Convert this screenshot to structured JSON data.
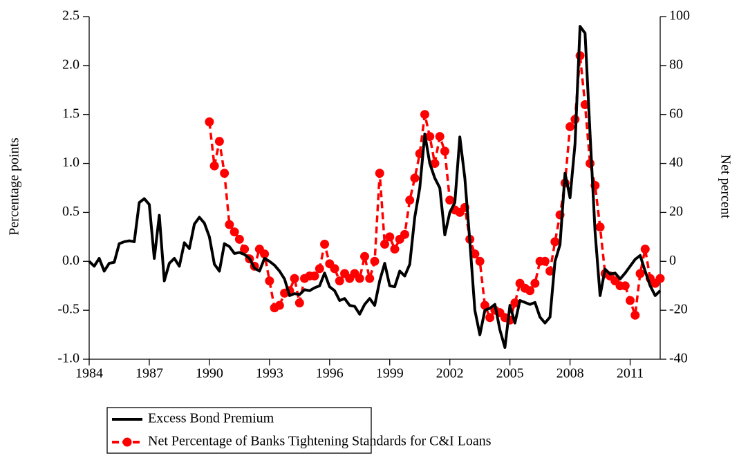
{
  "chart_data": {
    "type": "line",
    "y_label": "Percentage points",
    "y2_label": "Net percent",
    "x": [
      1984,
      1984.25,
      1984.5,
      1984.75,
      1985,
      1985.25,
      1985.5,
      1985.75,
      1986,
      1986.25,
      1986.5,
      1986.75,
      1987,
      1987.25,
      1987.5,
      1987.75,
      1988,
      1988.25,
      1988.5,
      1988.75,
      1989,
      1989.25,
      1989.5,
      1989.75,
      1990,
      1990.25,
      1990.5,
      1990.75,
      1991,
      1991.25,
      1991.5,
      1991.75,
      1992,
      1992.25,
      1992.5,
      1992.75,
      1993,
      1993.25,
      1993.5,
      1993.75,
      1994,
      1994.25,
      1994.5,
      1994.75,
      1995,
      1995.25,
      1995.5,
      1995.75,
      1996,
      1996.25,
      1996.5,
      1996.75,
      1997,
      1997.25,
      1997.5,
      1997.75,
      1998,
      1998.25,
      1998.5,
      1998.75,
      1999,
      1999.25,
      1999.5,
      1999.75,
      2000,
      2000.25,
      2000.5,
      2000.75,
      2001,
      2001.25,
      2001.5,
      2001.75,
      2002,
      2002.25,
      2002.5,
      2002.75,
      2003,
      2003.25,
      2003.5,
      2003.75,
      2004,
      2004.25,
      2004.5,
      2004.75,
      2005,
      2005.25,
      2005.5,
      2005.75,
      2006,
      2006.25,
      2006.5,
      2006.75,
      2007,
      2007.25,
      2007.5,
      2007.75,
      2008,
      2008.25,
      2008.5,
      2008.75,
      2009,
      2009.25,
      2009.5,
      2009.75,
      2010,
      2010.25,
      2010.5,
      2010.75,
      2011,
      2011.25,
      2011.5,
      2011.75,
      2012,
      2012.25,
      2012.5
    ],
    "series": [
      {
        "name": "Excess Bond Premium",
        "color": "#000000",
        "axis": "y",
        "dashed": false,
        "marker": "none",
        "values": [
          0.0,
          -0.05,
          0.03,
          -0.1,
          -0.02,
          -0.01,
          0.18,
          0.2,
          0.21,
          0.2,
          0.6,
          0.64,
          0.58,
          0.03,
          0.47,
          -0.2,
          -0.02,
          0.03,
          -0.05,
          0.19,
          0.13,
          0.38,
          0.45,
          0.39,
          0.25,
          -0.03,
          -0.1,
          0.18,
          0.15,
          0.08,
          0.09,
          0.07,
          0.03,
          -0.07,
          -0.1,
          0.03,
          0.0,
          -0.04,
          -0.1,
          -0.18,
          -0.35,
          -0.33,
          -0.34,
          -0.29,
          -0.3,
          -0.27,
          -0.25,
          -0.12,
          -0.26,
          -0.3,
          -0.4,
          -0.38,
          -0.45,
          -0.46,
          -0.54,
          -0.44,
          -0.38,
          -0.45,
          -0.2,
          -0.02,
          -0.25,
          -0.26,
          -0.1,
          -0.15,
          -0.03,
          0.45,
          0.75,
          1.3,
          1.0,
          0.85,
          0.75,
          0.27,
          0.5,
          0.6,
          1.27,
          0.85,
          0.2,
          -0.5,
          -0.75,
          -0.5,
          -0.48,
          -0.44,
          -0.7,
          -0.88,
          -0.45,
          -0.63,
          -0.4,
          -0.42,
          -0.44,
          -0.42,
          -0.57,
          -0.63,
          -0.57,
          0.0,
          0.17,
          0.9,
          0.65,
          1.2,
          2.4,
          2.33,
          1.3,
          0.3,
          -0.35,
          -0.08,
          -0.13,
          -0.12,
          -0.18,
          -0.12,
          -0.05,
          0.02,
          0.06,
          -0.1,
          -0.25,
          -0.35,
          -0.3
        ]
      },
      {
        "name": "Net Percentage of Banks Tightening Standards for C&I Loans",
        "color": "#ff0000",
        "axis": "y2",
        "dashed": true,
        "marker": "circle",
        "values": [
          null,
          null,
          null,
          null,
          null,
          null,
          null,
          null,
          null,
          null,
          null,
          null,
          null,
          null,
          null,
          null,
          null,
          null,
          null,
          null,
          null,
          null,
          null,
          null,
          57,
          39,
          49,
          36,
          15,
          12,
          9,
          5,
          1,
          -2,
          5,
          3,
          -8,
          -19,
          -18,
          -13,
          -12,
          -7,
          -17,
          -7,
          -6,
          -6,
          -3,
          7,
          -1,
          -3,
          -8,
          -5,
          -7,
          -5,
          -7,
          2,
          -7,
          0,
          36,
          7,
          10,
          5,
          9,
          11,
          25,
          34,
          44,
          60,
          51,
          40,
          51,
          45,
          25,
          21,
          20,
          22,
          9,
          3,
          0,
          -18,
          -23,
          -20,
          -21,
          -23,
          -24,
          -17,
          -9,
          -11,
          -12,
          -9,
          0,
          0,
          -4,
          8,
          19,
          32,
          55,
          58,
          84,
          64,
          40,
          31,
          14,
          -5,
          -6,
          -8,
          -10,
          -10,
          -16,
          -22,
          -5,
          5,
          -7,
          -9,
          -7
        ]
      }
    ],
    "xlim": [
      1984,
      2012.5
    ],
    "xticks": [
      1984,
      1987,
      1990,
      1993,
      1996,
      1999,
      2002,
      2005,
      2008,
      2011
    ],
    "ylim": [
      -1.0,
      2.5
    ],
    "yticks": [
      {
        "value": -1.0,
        "label": "-1.0"
      },
      -0.5,
      {
        "value": 0.0,
        "label": "0.0"
      },
      0.5,
      {
        "value": 1.0,
        "label": "1.0"
      },
      1.5,
      {
        "value": 2.0,
        "label": "2.0"
      },
      2.5
    ],
    "y2lim": [
      -40,
      100
    ],
    "y2ticks": [
      -40,
      -20,
      0,
      20,
      40,
      60,
      80,
      100
    ],
    "grid": false,
    "legend": "bottom"
  }
}
